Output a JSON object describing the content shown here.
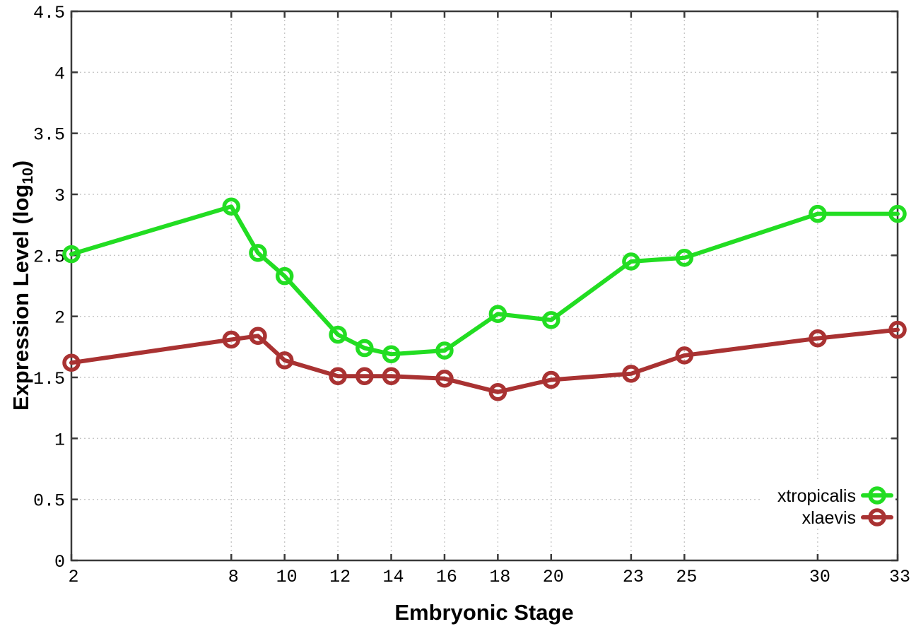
{
  "chart_data": {
    "type": "line",
    "title": "",
    "xlabel": "Embryonic Stage",
    "ylabel": "Expression Level (log10)",
    "ylabel_parts": {
      "prefix": "Expression Level (log",
      "sub": "10",
      "suffix": ")"
    },
    "x": [
      2,
      8,
      9,
      10,
      12,
      13,
      14,
      16,
      18,
      20,
      23,
      25,
      30,
      33
    ],
    "series": [
      {
        "name": "xtropicalis",
        "color": "#22dd22",
        "values": [
          2.51,
          2.9,
          2.52,
          2.33,
          1.85,
          1.74,
          1.69,
          1.72,
          2.02,
          1.97,
          2.45,
          2.48,
          2.84,
          2.84
        ]
      },
      {
        "name": "xlaevis",
        "color": "#a93232",
        "values": [
          1.62,
          1.81,
          1.84,
          1.64,
          1.51,
          1.51,
          1.51,
          1.49,
          1.38,
          1.48,
          1.53,
          1.68,
          1.82,
          1.89
        ]
      }
    ],
    "xlim": [
      2,
      33
    ],
    "ylim": [
      0,
      4.5
    ],
    "xticks": [
      2,
      8,
      10,
      12,
      14,
      16,
      18,
      20,
      23,
      25,
      30,
      33
    ],
    "xtick_labels": [
      "2",
      "8",
      "10",
      "12",
      "14",
      "16",
      "18",
      "20",
      "23",
      "25",
      "30",
      "33"
    ],
    "yticks": [
      0,
      0.5,
      1,
      1.5,
      2,
      2.5,
      3,
      3.5,
      4,
      4.5
    ],
    "ytick_labels": [
      "0",
      "0.5",
      "1",
      "1.5",
      "2",
      "2.5",
      "3",
      "3.5",
      "4",
      "4.5"
    ],
    "grid": true,
    "legend_position": "inside bottom right",
    "legend": [
      "xtropicalis",
      "xlaevis"
    ],
    "colors": {
      "background": "#ffffff",
      "axis": "#3a3a3a",
      "grid": "#c8c8c8",
      "text": "#000000",
      "xtropicalis": "#22dd22",
      "xlaevis": "#a93232"
    },
    "marker": "open-circle"
  }
}
